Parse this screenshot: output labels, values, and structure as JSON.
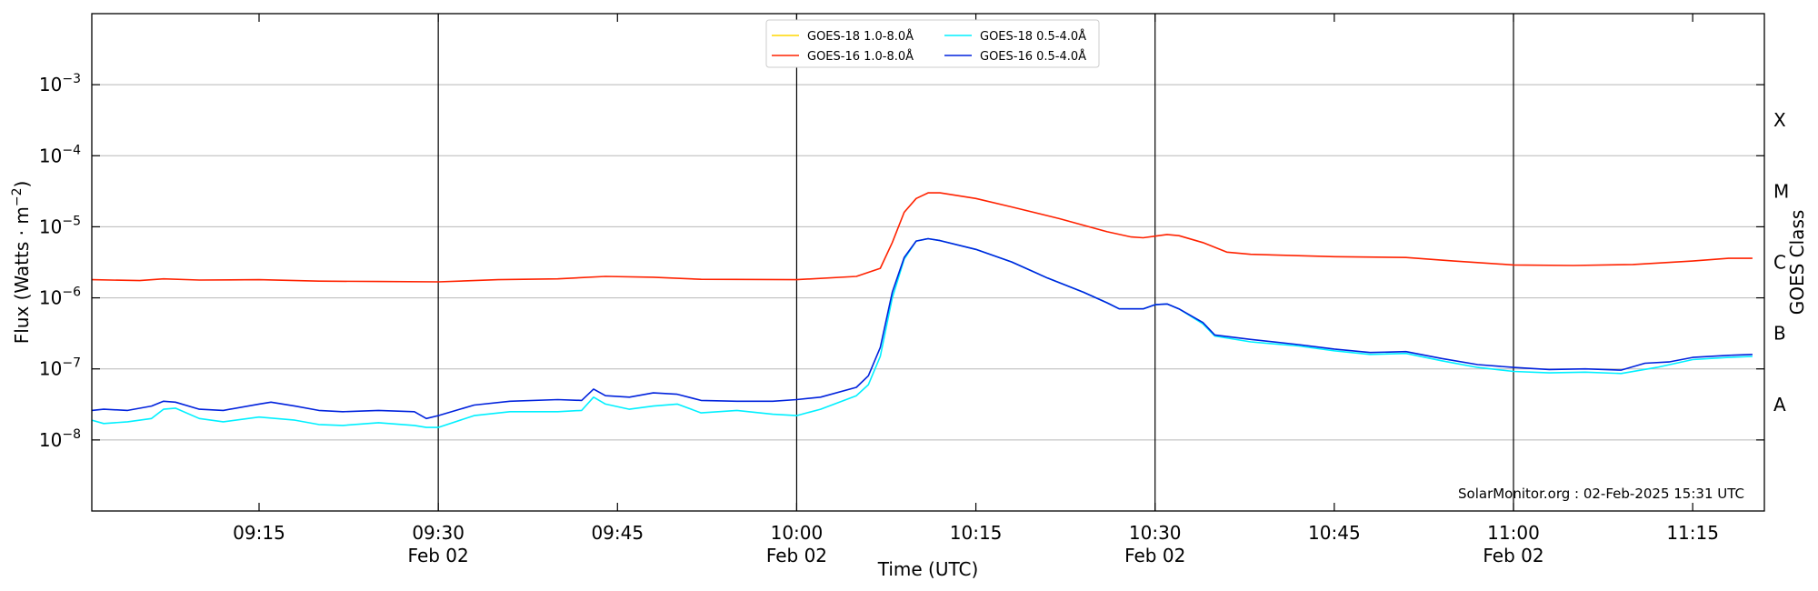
{
  "chart_data": {
    "type": "line",
    "xlabel": "Time (UTC)",
    "ylabel": "Flux (Watts · m",
    "ylabel_sup": "−2",
    "ylabel_close": ")",
    "y2label": "GOES Class",
    "yscale": "log",
    "ylim": [
      1e-09,
      0.01
    ],
    "xlim": [
      "09:01",
      "11:21"
    ],
    "grid": "horizontal",
    "legend_placement": "top-center",
    "credit": "SolarMonitor.org : 02-Feb-2025 15:31 UTC",
    "y_ticks": [
      {
        "value": 1e-08,
        "base": "10",
        "exp": "−8"
      },
      {
        "value": 1e-07,
        "base": "10",
        "exp": "−7"
      },
      {
        "value": 1e-06,
        "base": "10",
        "exp": "−6"
      },
      {
        "value": 1e-05,
        "base": "10",
        "exp": "−5"
      },
      {
        "value": 0.0001,
        "base": "10",
        "exp": "−4"
      },
      {
        "value": 0.001,
        "base": "10",
        "exp": "−3"
      }
    ],
    "x_ticks": [
      {
        "time": "09:15",
        "label": "09:15",
        "date": ""
      },
      {
        "time": "09:30",
        "label": "09:30",
        "date": "Feb 02"
      },
      {
        "time": "09:45",
        "label": "09:45",
        "date": ""
      },
      {
        "time": "10:00",
        "label": "10:00",
        "date": "Feb 02"
      },
      {
        "time": "10:15",
        "label": "10:15",
        "date": ""
      },
      {
        "time": "10:30",
        "label": "10:30",
        "date": "Feb 02"
      },
      {
        "time": "10:45",
        "label": "10:45",
        "date": ""
      },
      {
        "time": "11:00",
        "label": "11:00",
        "date": "Feb 02"
      },
      {
        "time": "11:15",
        "label": "11:15",
        "date": ""
      }
    ],
    "vlines": [
      "09:30",
      "10:00",
      "10:30",
      "11:00"
    ],
    "goes_classes": [
      {
        "label": "A",
        "value": 3.16e-08
      },
      {
        "label": "B",
        "value": 3.16e-07
      },
      {
        "label": "C",
        "value": 3.16e-06
      },
      {
        "label": "M",
        "value": 3.16e-05
      },
      {
        "label": "X",
        "value": 0.000316
      }
    ],
    "series": [
      {
        "name": "GOES-18 1.0-8.0Å",
        "color": "#ffd700",
        "points": []
      },
      {
        "name": "GOES-16 1.0-8.0Å",
        "color": "#ff2200",
        "points": [
          [
            "09:01",
            1.8e-06
          ],
          [
            "09:05",
            1.75e-06
          ],
          [
            "09:07",
            1.85e-06
          ],
          [
            "09:10",
            1.78e-06
          ],
          [
            "09:15",
            1.8e-06
          ],
          [
            "09:20",
            1.72e-06
          ],
          [
            "09:25",
            1.7e-06
          ],
          [
            "09:30",
            1.68e-06
          ],
          [
            "09:35",
            1.8e-06
          ],
          [
            "09:40",
            1.85e-06
          ],
          [
            "09:44",
            2e-06
          ],
          [
            "09:48",
            1.95e-06
          ],
          [
            "09:52",
            1.82e-06
          ],
          [
            "10:00",
            1.8e-06
          ],
          [
            "10:05",
            2e-06
          ],
          [
            "10:07",
            2.6e-06
          ],
          [
            "10:08",
            6e-06
          ],
          [
            "10:09",
            1.6e-05
          ],
          [
            "10:10",
            2.5e-05
          ],
          [
            "10:11",
            3e-05
          ],
          [
            "10:12",
            3e-05
          ],
          [
            "10:15",
            2.5e-05
          ],
          [
            "10:18",
            1.9e-05
          ],
          [
            "10:22",
            1.3e-05
          ],
          [
            "10:26",
            8.5e-06
          ],
          [
            "10:28",
            7.2e-06
          ],
          [
            "10:29",
            7e-06
          ],
          [
            "10:31",
            7.8e-06
          ],
          [
            "10:32",
            7.5e-06
          ],
          [
            "10:34",
            6e-06
          ],
          [
            "10:36",
            4.4e-06
          ],
          [
            "10:38",
            4.1e-06
          ],
          [
            "10:45",
            3.8e-06
          ],
          [
            "10:51",
            3.7e-06
          ],
          [
            "10:55",
            3.3e-06
          ],
          [
            "11:00",
            2.9e-06
          ],
          [
            "11:05",
            2.85e-06
          ],
          [
            "11:10",
            2.95e-06
          ],
          [
            "11:15",
            3.3e-06
          ],
          [
            "11:18",
            3.6e-06
          ],
          [
            "11:20",
            3.6e-06
          ]
        ]
      },
      {
        "name": "GOES-18 0.5-4.0Å",
        "color": "#00f0ff",
        "points": [
          [
            "09:01",
            1.9e-08
          ],
          [
            "09:02",
            1.7e-08
          ],
          [
            "09:04",
            1.8e-08
          ],
          [
            "09:06",
            2e-08
          ],
          [
            "09:07",
            2.7e-08
          ],
          [
            "09:08",
            2.8e-08
          ],
          [
            "09:10",
            2e-08
          ],
          [
            "09:12",
            1.8e-08
          ],
          [
            "09:15",
            2.1e-08
          ],
          [
            "09:18",
            1.9e-08
          ],
          [
            "09:20",
            1.65e-08
          ],
          [
            "09:22",
            1.6e-08
          ],
          [
            "09:25",
            1.75e-08
          ],
          [
            "09:28",
            1.6e-08
          ],
          [
            "09:29",
            1.5e-08
          ],
          [
            "09:30",
            1.5e-08
          ],
          [
            "09:33",
            2.2e-08
          ],
          [
            "09:36",
            2.5e-08
          ],
          [
            "09:40",
            2.5e-08
          ],
          [
            "09:42",
            2.6e-08
          ],
          [
            "09:43",
            4e-08
          ],
          [
            "09:44",
            3.2e-08
          ],
          [
            "09:46",
            2.7e-08
          ],
          [
            "09:48",
            3e-08
          ],
          [
            "09:50",
            3.2e-08
          ],
          [
            "09:52",
            2.4e-08
          ],
          [
            "09:55",
            2.6e-08
          ],
          [
            "09:58",
            2.3e-08
          ],
          [
            "10:00",
            2.2e-08
          ],
          [
            "10:02",
            2.7e-08
          ],
          [
            "10:05",
            4.2e-08
          ],
          [
            "10:06",
            6e-08
          ],
          [
            "10:07",
            1.5e-07
          ],
          [
            "10:08",
            1e-06
          ],
          [
            "10:09",
            3.5e-06
          ],
          [
            "10:10",
            6.3e-06
          ],
          [
            "10:11",
            6.8e-06
          ],
          [
            "10:12",
            6.4e-06
          ],
          [
            "10:15",
            4.8e-06
          ],
          [
            "10:18",
            3.2e-06
          ],
          [
            "10:21",
            1.9e-06
          ],
          [
            "10:24",
            1.2e-06
          ],
          [
            "10:26",
            8.5e-07
          ],
          [
            "10:27",
            7e-07
          ],
          [
            "10:29",
            7e-07
          ],
          [
            "10:30",
            8e-07
          ],
          [
            "10:31",
            8.2e-07
          ],
          [
            "10:32",
            7e-07
          ],
          [
            "10:34",
            4.3e-07
          ],
          [
            "10:35",
            2.9e-07
          ],
          [
            "10:38",
            2.4e-07
          ],
          [
            "10:42",
            2.1e-07
          ],
          [
            "10:45",
            1.8e-07
          ],
          [
            "10:48",
            1.6e-07
          ],
          [
            "10:51",
            1.65e-07
          ],
          [
            "10:54",
            1.3e-07
          ],
          [
            "10:57",
            1.05e-07
          ],
          [
            "11:00",
            9.2e-08
          ],
          [
            "11:03",
            8.8e-08
          ],
          [
            "11:06",
            9e-08
          ],
          [
            "11:09",
            8.6e-08
          ],
          [
            "11:12",
            1.05e-07
          ],
          [
            "11:15",
            1.35e-07
          ],
          [
            "11:18",
            1.45e-07
          ],
          [
            "11:20",
            1.5e-07
          ]
        ]
      },
      {
        "name": "GOES-16 0.5-4.0Å",
        "color": "#0022dd",
        "points": [
          [
            "09:01",
            2.6e-08
          ],
          [
            "09:02",
            2.7e-08
          ],
          [
            "09:04",
            2.6e-08
          ],
          [
            "09:06",
            3e-08
          ],
          [
            "09:07",
            3.5e-08
          ],
          [
            "09:08",
            3.4e-08
          ],
          [
            "09:10",
            2.7e-08
          ],
          [
            "09:12",
            2.6e-08
          ],
          [
            "09:15",
            3.2e-08
          ],
          [
            "09:16",
            3.4e-08
          ],
          [
            "09:18",
            3e-08
          ],
          [
            "09:20",
            2.6e-08
          ],
          [
            "09:22",
            2.5e-08
          ],
          [
            "09:25",
            2.6e-08
          ],
          [
            "09:28",
            2.5e-08
          ],
          [
            "09:29",
            2e-08
          ],
          [
            "09:30",
            2.2e-08
          ],
          [
            "09:33",
            3.1e-08
          ],
          [
            "09:36",
            3.5e-08
          ],
          [
            "09:40",
            3.7e-08
          ],
          [
            "09:42",
            3.6e-08
          ],
          [
            "09:43",
            5.2e-08
          ],
          [
            "09:44",
            4.2e-08
          ],
          [
            "09:46",
            4e-08
          ],
          [
            "09:48",
            4.6e-08
          ],
          [
            "09:50",
            4.4e-08
          ],
          [
            "09:52",
            3.6e-08
          ],
          [
            "09:55",
            3.5e-08
          ],
          [
            "09:58",
            3.5e-08
          ],
          [
            "10:00",
            3.7e-08
          ],
          [
            "10:02",
            4e-08
          ],
          [
            "10:05",
            5.5e-08
          ],
          [
            "10:06",
            8e-08
          ],
          [
            "10:07",
            2e-07
          ],
          [
            "10:08",
            1.2e-06
          ],
          [
            "10:09",
            3.7e-06
          ],
          [
            "10:10",
            6.3e-06
          ],
          [
            "10:11",
            6.8e-06
          ],
          [
            "10:12",
            6.4e-06
          ],
          [
            "10:15",
            4.8e-06
          ],
          [
            "10:18",
            3.2e-06
          ],
          [
            "10:21",
            1.9e-06
          ],
          [
            "10:24",
            1.2e-06
          ],
          [
            "10:26",
            8.5e-07
          ],
          [
            "10:27",
            7e-07
          ],
          [
            "10:29",
            7e-07
          ],
          [
            "10:30",
            8e-07
          ],
          [
            "10:31",
            8.2e-07
          ],
          [
            "10:32",
            7e-07
          ],
          [
            "10:34",
            4.5e-07
          ],
          [
            "10:35",
            3e-07
          ],
          [
            "10:38",
            2.6e-07
          ],
          [
            "10:42",
            2.2e-07
          ],
          [
            "10:45",
            1.9e-07
          ],
          [
            "10:48",
            1.7e-07
          ],
          [
            "10:51",
            1.75e-07
          ],
          [
            "10:54",
            1.4e-07
          ],
          [
            "10:57",
            1.15e-07
          ],
          [
            "11:00",
            1.05e-07
          ],
          [
            "11:03",
            9.8e-08
          ],
          [
            "11:06",
            1e-07
          ],
          [
            "11:09",
            9.6e-08
          ],
          [
            "11:11",
            1.2e-07
          ],
          [
            "11:13",
            1.25e-07
          ],
          [
            "11:15",
            1.45e-07
          ],
          [
            "11:18",
            1.55e-07
          ],
          [
            "11:20",
            1.6e-07
          ]
        ]
      }
    ]
  }
}
